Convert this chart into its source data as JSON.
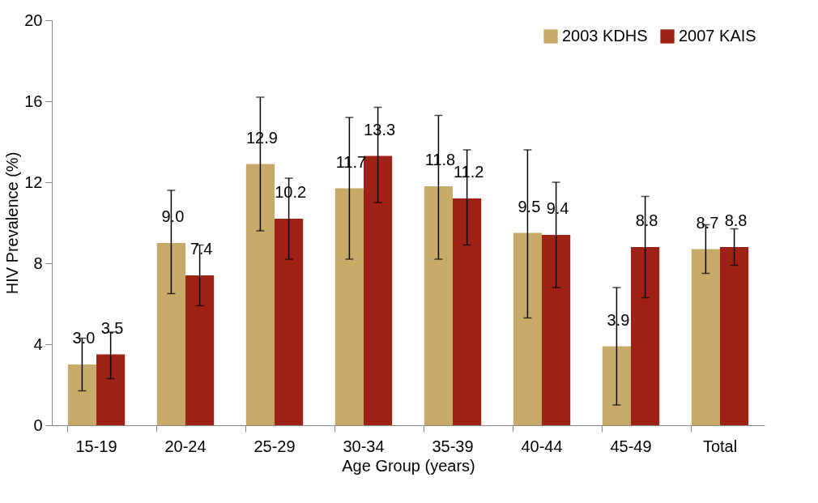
{
  "chart_data": {
    "type": "bar",
    "xlabel": "Age Group (years)",
    "ylabel": "HIV Prevalence (%)",
    "categories": [
      "15-19",
      "20-24",
      "25-29",
      "30-34",
      "35-39",
      "40-44",
      "45-49",
      "Total"
    ],
    "series": [
      {
        "name": "2003 KDHS",
        "color": "#c8aa68",
        "values": [
          3.0,
          9.0,
          12.9,
          11.7,
          11.8,
          9.5,
          3.9,
          8.7
        ],
        "value_labels": [
          "3.0",
          "9.0",
          "12.9",
          "11.7",
          "11.8",
          "9.5",
          "3.9",
          "8.7"
        ],
        "errors": [
          [
            1.7,
            4.3
          ],
          [
            6.5,
            11.6
          ],
          [
            9.6,
            16.2
          ],
          [
            8.2,
            15.2
          ],
          [
            8.2,
            15.3
          ],
          [
            5.3,
            13.6
          ],
          [
            1.0,
            6.8
          ],
          [
            7.5,
            9.9
          ]
        ]
      },
      {
        "name": "2007 KAIS",
        "color": "#9e2116",
        "values": [
          3.5,
          7.4,
          10.2,
          13.3,
          11.2,
          9.4,
          8.8,
          8.8
        ],
        "value_labels": [
          "3.5",
          "7.4",
          "10.2",
          "13.3",
          "11.2",
          "9.4",
          "8.8",
          "8.8"
        ],
        "errors": [
          [
            2.3,
            4.6
          ],
          [
            5.9,
            8.9
          ],
          [
            8.2,
            12.2
          ],
          [
            11.0,
            15.7
          ],
          [
            8.9,
            13.6
          ],
          [
            6.8,
            12.0
          ],
          [
            6.3,
            11.3
          ],
          [
            7.9,
            9.7
          ]
        ]
      }
    ],
    "ylim": [
      0,
      20
    ],
    "yticks": [
      0,
      4,
      8,
      12,
      16,
      20
    ],
    "grid": false,
    "legend": "top right"
  }
}
